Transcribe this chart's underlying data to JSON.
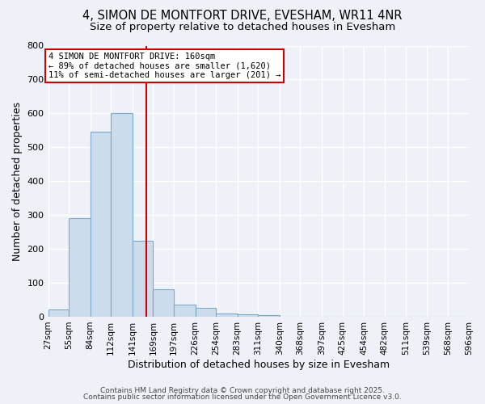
{
  "title1": "4, SIMON DE MONTFORT DRIVE, EVESHAM, WR11 4NR",
  "title2": "Size of property relative to detached houses in Evesham",
  "xlabel": "Distribution of detached houses by size in Evesham",
  "ylabel": "Number of detached properties",
  "bin_edges": [
    27,
    55,
    84,
    112,
    141,
    169,
    197,
    226,
    254,
    283,
    311,
    340,
    368,
    397,
    425,
    454,
    482,
    511,
    539,
    568,
    596
  ],
  "bar_heights": [
    22,
    290,
    545,
    600,
    225,
    82,
    35,
    25,
    10,
    8,
    5,
    0,
    0,
    0,
    0,
    0,
    0,
    0,
    0,
    0
  ],
  "bar_color": "#ccdcec",
  "bar_edge_color": "#7aaaca",
  "property_size": 160,
  "property_line_color": "#cc0000",
  "annotation_line1": "4 SIMON DE MONTFORT DRIVE: 160sqm",
  "annotation_line2": "← 89% of detached houses are smaller (1,620)",
  "annotation_line3": "11% of semi-detached houses are larger (201) →",
  "annotation_box_color": "#ffffff",
  "annotation_border_color": "#cc0000",
  "ylim": [
    0,
    800
  ],
  "yticks": [
    0,
    100,
    200,
    300,
    400,
    500,
    600,
    700,
    800
  ],
  "background_color": "#eef2f8",
  "grid_color": "#ffffff",
  "footer1": "Contains HM Land Registry data © Crown copyright and database right 2025.",
  "footer2": "Contains public sector information licensed under the Open Government Licence v3.0.",
  "title_fontsize": 10.5,
  "subtitle_fontsize": 9.5,
  "tick_label_fontsize": 7.5,
  "axis_label_fontsize": 9,
  "footer_fontsize": 6.5
}
